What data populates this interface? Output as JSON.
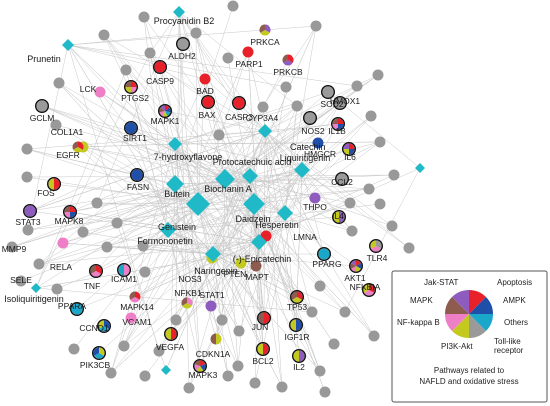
{
  "network": {
    "compounds": [
      {
        "id": "procyanidin_b2",
        "label": "Procyanidin B2"
      },
      {
        "id": "prunetin",
        "label": "Prunetin"
      },
      {
        "id": "hydroxyflavone",
        "label": "7-hydroxyflavone"
      },
      {
        "id": "catechin",
        "label": "Catechin"
      },
      {
        "id": "protocatechuic",
        "label": "Protocatechuic acid"
      },
      {
        "id": "butein",
        "label": "Butein"
      },
      {
        "id": "biochanin",
        "label": "Biochanin A"
      },
      {
        "id": "liquiritigenin",
        "label": "Liquiritigenin"
      },
      {
        "id": "genistein",
        "label": "Genistein"
      },
      {
        "id": "daidzein",
        "label": "Daidzein"
      },
      {
        "id": "hesperetin",
        "label": "Hesperetin"
      },
      {
        "id": "formononetin",
        "label": "Formononetin"
      },
      {
        "id": "epicatechin",
        "label": "(-)-Epicatechin"
      },
      {
        "id": "naringenin",
        "label": "Naringenin"
      },
      {
        "id": "isoliquiritigenin",
        "label": "Isoliquiritigenin"
      }
    ],
    "targets": [
      {
        "id": "ALDH2",
        "label": "ALDH2"
      },
      {
        "id": "PRKCA",
        "label": "PRKCA"
      },
      {
        "id": "LCK",
        "label": "LCK"
      },
      {
        "id": "PARP1",
        "label": "PARP1"
      },
      {
        "id": "PRKCB",
        "label": "PRKCB"
      },
      {
        "id": "GCLM",
        "label": "GCLM"
      },
      {
        "id": "PTGS2",
        "label": "PTGS2"
      },
      {
        "id": "CASP9",
        "label": "CASP9"
      },
      {
        "id": "BAD",
        "label": "BAD"
      },
      {
        "id": "HMOX1",
        "label": "HMOX1"
      },
      {
        "id": "MAPK1",
        "label": "MAPK1"
      },
      {
        "id": "BAX",
        "label": "BAX"
      },
      {
        "id": "CASP3",
        "label": "CASP3"
      },
      {
        "id": "SOD2",
        "label": "SOD2"
      },
      {
        "id": "COL1A1",
        "label": "COL1A1"
      },
      {
        "id": "CYP3A4",
        "label": "CYP3A4"
      },
      {
        "id": "NOS2",
        "label": "NOS2"
      },
      {
        "id": "IL1B",
        "label": "IL1B"
      },
      {
        "id": "SIRT1",
        "label": "SIRT1"
      },
      {
        "id": "EGFR",
        "label": "EGFR"
      },
      {
        "id": "IL6",
        "label": "IL6"
      },
      {
        "id": "HMGCR",
        "label": "HMGCR"
      },
      {
        "id": "FOS",
        "label": "FOS"
      },
      {
        "id": "FASN",
        "label": "FASN"
      },
      {
        "id": "CCL2",
        "label": "CCL2"
      },
      {
        "id": "MAPK8",
        "label": "MAPK8"
      },
      {
        "id": "STAT3",
        "label": "STAT3"
      },
      {
        "id": "THPO",
        "label": "THPO"
      },
      {
        "id": "IL4",
        "label": "IL4"
      },
      {
        "id": "MMP9",
        "label": "MMP9"
      },
      {
        "id": "RELA",
        "label": "RELA"
      },
      {
        "id": "LMNA",
        "label": "LMNA"
      },
      {
        "id": "TLR4",
        "label": "TLR4"
      },
      {
        "id": "SELE",
        "label": "SELE"
      },
      {
        "id": "ICAM1",
        "label": "ICAM1"
      },
      {
        "id": "AKT1",
        "label": "AKT1"
      },
      {
        "id": "TNF",
        "label": "TNF"
      },
      {
        "id": "NOS3",
        "label": "NOS3"
      },
      {
        "id": "MAPT",
        "label": "MAPT"
      },
      {
        "id": "PPARG",
        "label": "PPARG"
      },
      {
        "id": "PTEN",
        "label": "PTEN"
      },
      {
        "id": "NFKBIA",
        "label": "NFKBIA"
      },
      {
        "id": "PPARA",
        "label": "PPARA"
      },
      {
        "id": "MAPK14",
        "label": "MAPK14"
      },
      {
        "id": "NFKB1",
        "label": "NFKB1"
      },
      {
        "id": "STAT1",
        "label": "STAT1"
      },
      {
        "id": "TP53",
        "label": "TP53"
      },
      {
        "id": "VCAM1",
        "label": "VCAM1"
      },
      {
        "id": "CCND1",
        "label": "CCND1"
      },
      {
        "id": "JUN",
        "label": "JUN"
      },
      {
        "id": "IGF1R",
        "label": "IGF1R"
      },
      {
        "id": "VEGFA",
        "label": "VEGFA"
      },
      {
        "id": "CDKN1A",
        "label": "CDKN1A"
      },
      {
        "id": "PIK3CB",
        "label": "PIK3CB"
      },
      {
        "id": "MAPK3",
        "label": "MAPK3"
      },
      {
        "id": "BCL2",
        "label": "BCL2"
      },
      {
        "id": "IL2",
        "label": "IL2"
      }
    ]
  },
  "legend": {
    "title": "Pathways related to NAFLD and oxidative stress",
    "title_line1": "Pathways related to",
    "title_line2": "NAFLD and oxidative stress",
    "slices": [
      {
        "label": "Apoptosis",
        "color": "#e8202a"
      },
      {
        "label": "AMPK",
        "color": "#1f4fa8"
      },
      {
        "label": "Others",
        "color": "#1aa7c9"
      },
      {
        "label": "Toll-like receptor",
        "color": "#9a9a9a"
      },
      {
        "label": "PI3K-Akt",
        "color": "#c3c91e"
      },
      {
        "label": "NF-kappa B",
        "color": "#ee7fc6"
      },
      {
        "label": "MAPK",
        "color": "#8e5b4f"
      },
      {
        "label": "Jak-STAT",
        "color": "#8e5cbe"
      }
    ],
    "labels": {
      "jak": "Jak-STAT",
      "apoptosis": "Apoptosis",
      "mapk": "MAPK",
      "ampk": "AMPK",
      "nfkb": "NF-kappa B",
      "others": "Others",
      "pi3k": "PI3K-Akt",
      "tlr_line1": "Toll-like",
      "tlr_line2": "receptor"
    }
  },
  "colors": {
    "compound": "#20b9c8",
    "gray_node": "#999999",
    "edge": "#c8c8c8"
  }
}
